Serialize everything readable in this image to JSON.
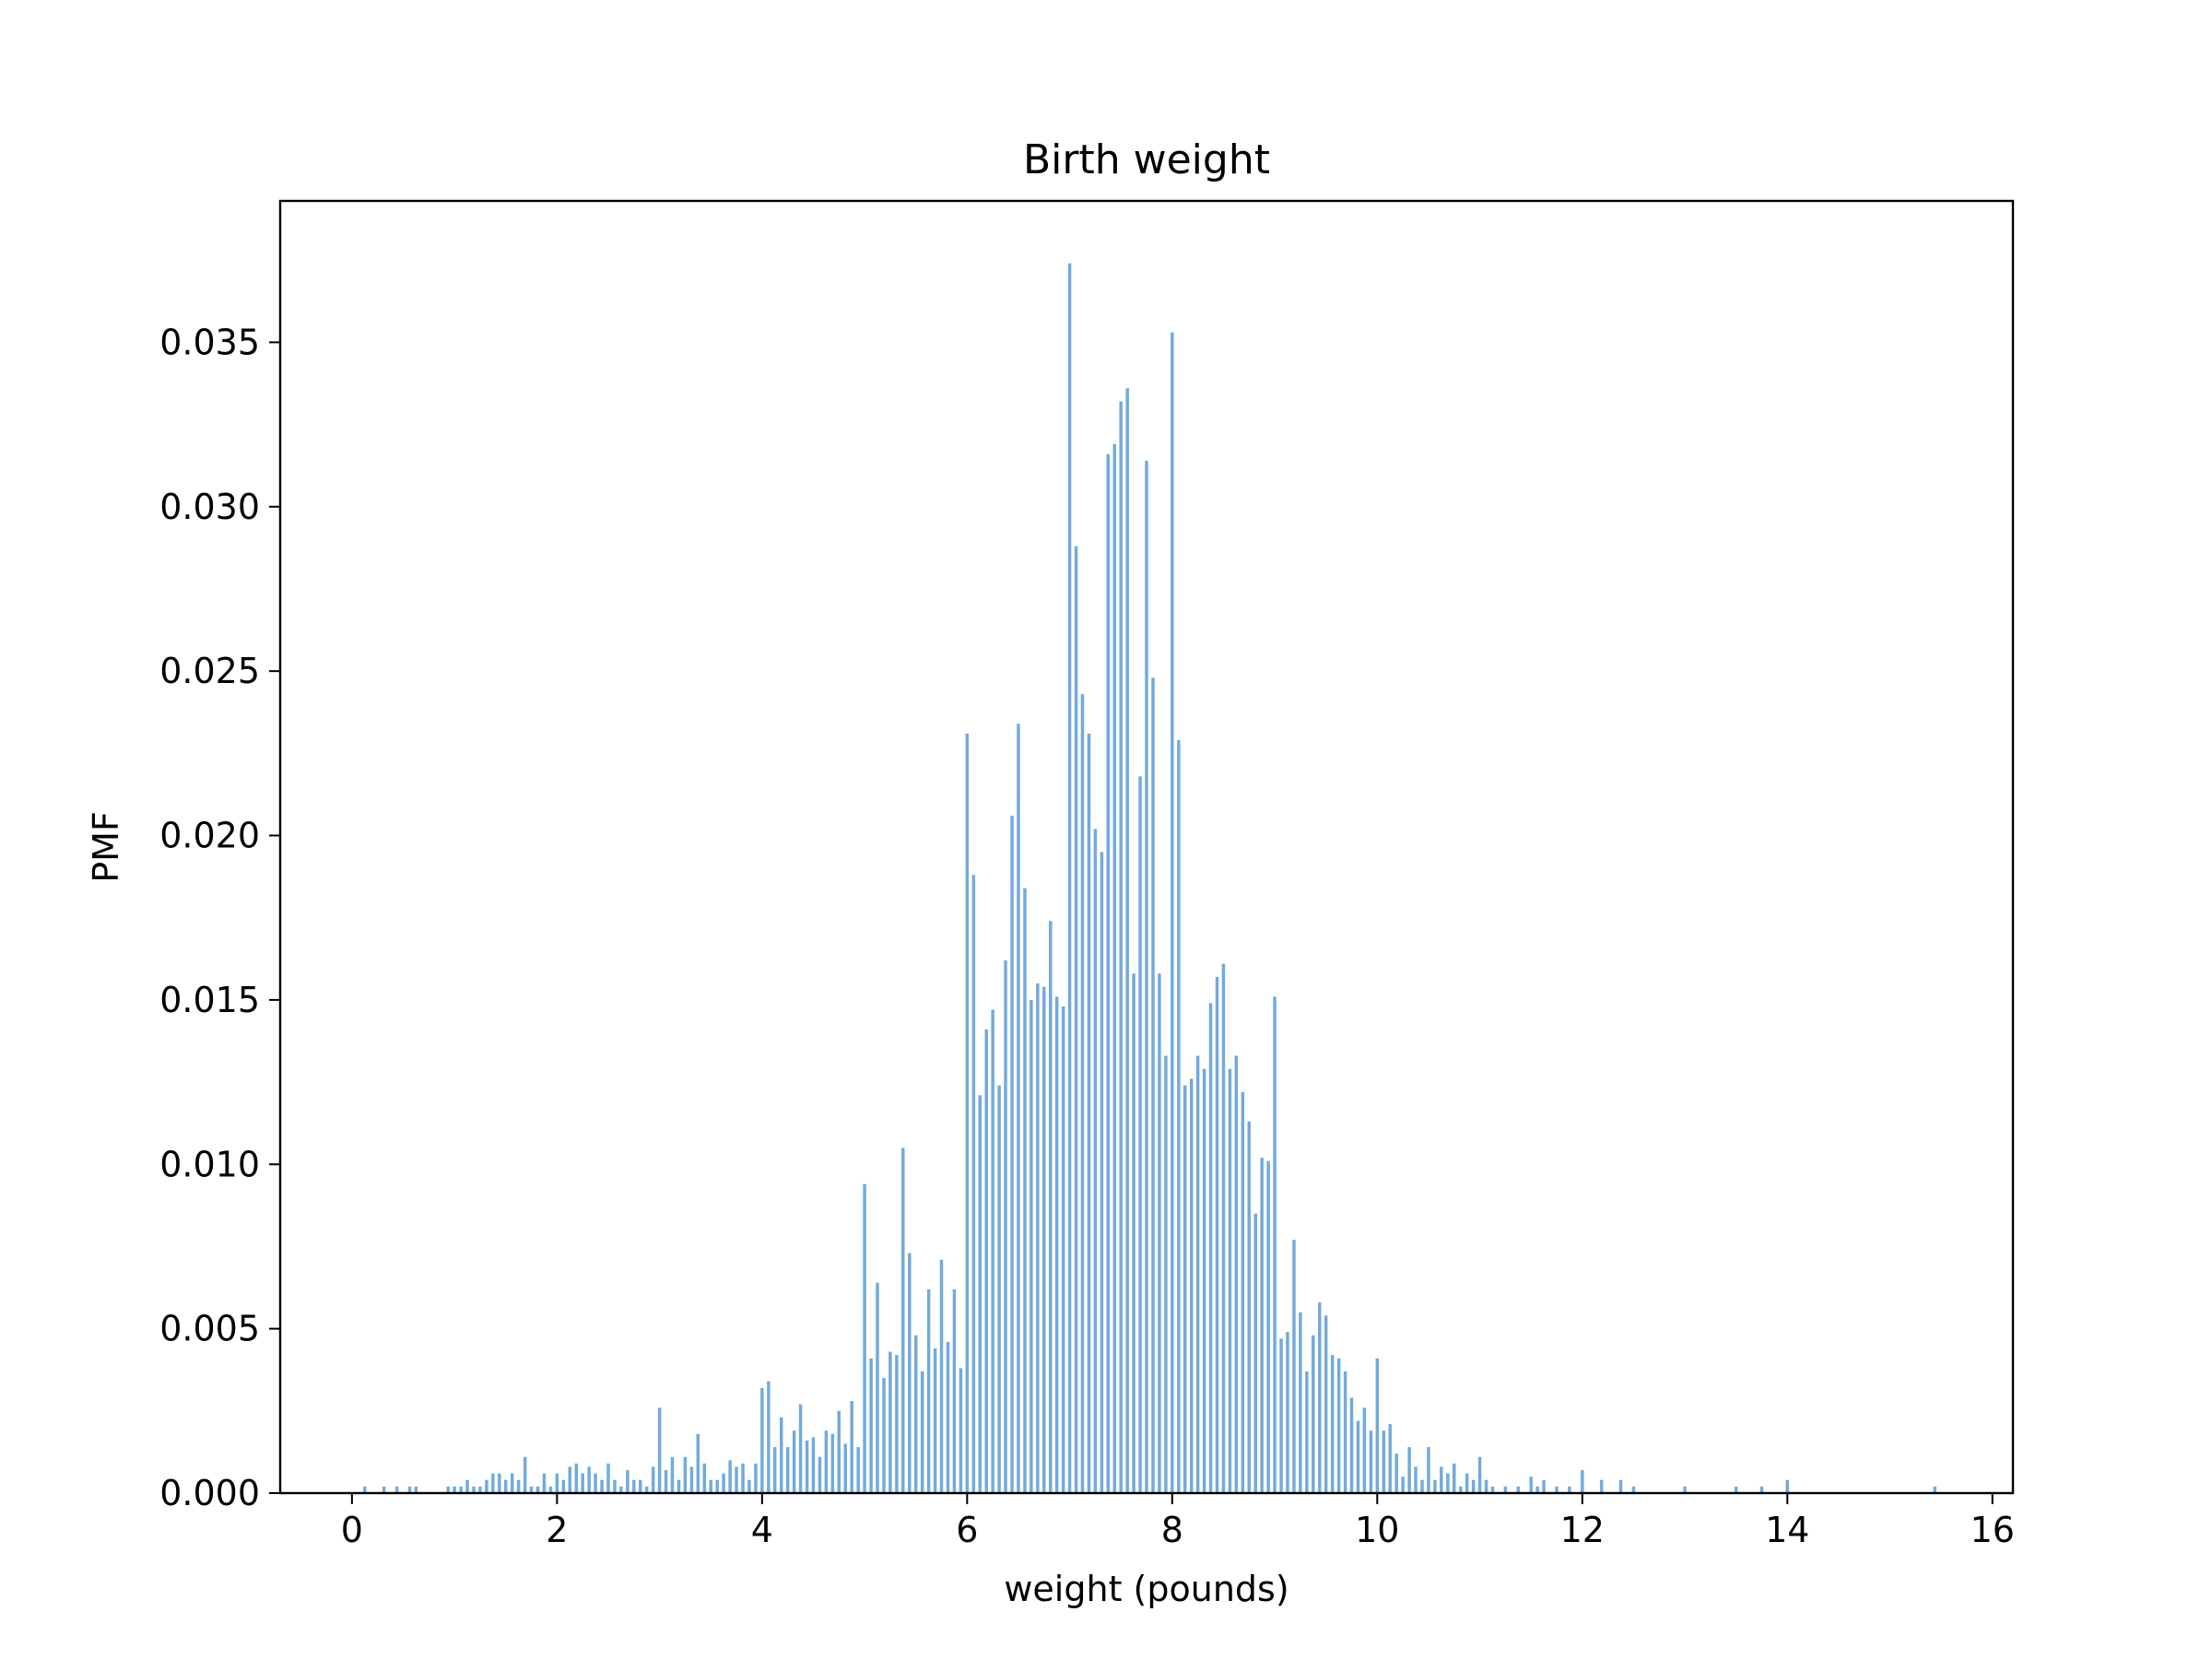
{
  "chart_data": {
    "type": "bar",
    "title": "Birth weight",
    "xlabel": "weight (pounds)",
    "ylabel": "PMF",
    "xlim": [
      -0.7,
      16.2
    ],
    "ylim": [
      0,
      0.0393
    ],
    "grid": false,
    "legend": "none",
    "bar_color": "#5b9bd5",
    "bar_width": 0.0313,
    "xticks": [
      {
        "value": 0,
        "label": "0"
      },
      {
        "value": 2,
        "label": "2"
      },
      {
        "value": 4,
        "label": "4"
      },
      {
        "value": 6,
        "label": "6"
      },
      {
        "value": 8,
        "label": "8"
      },
      {
        "value": 10,
        "label": "10"
      },
      {
        "value": 12,
        "label": "12"
      },
      {
        "value": 14,
        "label": "14"
      },
      {
        "value": 16,
        "label": "16"
      }
    ],
    "yticks": [
      {
        "value": 0,
        "label": "0.000"
      },
      {
        "value": 0.005,
        "label": "0.005"
      },
      {
        "value": 0.01,
        "label": "0.010"
      },
      {
        "value": 0.015,
        "label": "0.015"
      },
      {
        "value": 0.02,
        "label": "0.020"
      },
      {
        "value": 0.025,
        "label": "0.025"
      },
      {
        "value": 0.03,
        "label": "0.030"
      },
      {
        "value": 0.035,
        "label": "0.035"
      }
    ],
    "x": [
      0.125,
      0.313,
      0.438,
      0.563,
      0.625,
      0.938,
      1.0,
      1.063,
      1.125,
      1.188,
      1.25,
      1.313,
      1.375,
      1.438,
      1.5,
      1.563,
      1.625,
      1.688,
      1.75,
      1.813,
      1.875,
      1.938,
      2.0,
      2.063,
      2.125,
      2.188,
      2.25,
      2.313,
      2.375,
      2.438,
      2.5,
      2.563,
      2.625,
      2.688,
      2.75,
      2.813,
      2.875,
      2.938,
      3.0,
      3.063,
      3.125,
      3.188,
      3.25,
      3.313,
      3.375,
      3.438,
      3.5,
      3.563,
      3.625,
      3.688,
      3.75,
      3.813,
      3.875,
      3.938,
      4.0,
      4.063,
      4.125,
      4.188,
      4.25,
      4.313,
      4.375,
      4.438,
      4.5,
      4.563,
      4.625,
      4.688,
      4.75,
      4.813,
      4.875,
      4.938,
      5.0,
      5.063,
      5.125,
      5.188,
      5.25,
      5.313,
      5.375,
      5.438,
      5.5,
      5.563,
      5.625,
      5.688,
      5.75,
      5.813,
      5.875,
      5.938,
      6.0,
      6.063,
      6.125,
      6.188,
      6.25,
      6.313,
      6.375,
      6.438,
      6.5,
      6.563,
      6.625,
      6.688,
      6.75,
      6.813,
      6.875,
      6.938,
      7.0,
      7.063,
      7.125,
      7.188,
      7.25,
      7.313,
      7.375,
      7.438,
      7.5,
      7.563,
      7.625,
      7.688,
      7.75,
      7.813,
      7.875,
      7.938,
      8.0,
      8.063,
      8.125,
      8.188,
      8.25,
      8.313,
      8.375,
      8.438,
      8.5,
      8.563,
      8.625,
      8.688,
      8.75,
      8.813,
      8.875,
      8.938,
      9.0,
      9.063,
      9.125,
      9.188,
      9.25,
      9.313,
      9.375,
      9.438,
      9.5,
      9.563,
      9.625,
      9.688,
      9.75,
      9.813,
      9.875,
      9.938,
      10.0,
      10.063,
      10.125,
      10.188,
      10.25,
      10.313,
      10.375,
      10.438,
      10.5,
      10.563,
      10.625,
      10.688,
      10.75,
      10.813,
      10.875,
      10.938,
      11.0,
      11.063,
      11.125,
      11.25,
      11.375,
      11.5,
      11.563,
      11.625,
      11.75,
      11.875,
      12.0,
      12.188,
      12.375,
      12.5,
      13.0,
      13.5,
      13.75,
      14.0,
      15.438
    ],
    "values": [
      0.0002,
      0.0002,
      0.0002,
      0.0002,
      0.0002,
      0.0002,
      0.0002,
      0.0002,
      0.0004,
      0.0002,
      0.0002,
      0.0004,
      0.0006,
      0.0006,
      0.0004,
      0.0006,
      0.0004,
      0.0011,
      0.0002,
      0.0002,
      0.0006,
      0.0002,
      0.0006,
      0.0004,
      0.0008,
      0.0009,
      0.0006,
      0.0008,
      0.0006,
      0.0004,
      0.0009,
      0.0004,
      0.0002,
      0.0007,
      0.0004,
      0.0004,
      0.0002,
      0.0008,
      0.0026,
      0.0007,
      0.0011,
      0.0004,
      0.0011,
      0.0008,
      0.0018,
      0.0009,
      0.0004,
      0.0004,
      0.0006,
      0.001,
      0.0008,
      0.0009,
      0.0004,
      0.0009,
      0.0032,
      0.0034,
      0.0014,
      0.0023,
      0.0014,
      0.0019,
      0.0027,
      0.0016,
      0.0017,
      0.0011,
      0.0019,
      0.0018,
      0.0025,
      0.0015,
      0.0028,
      0.0014,
      0.0094,
      0.0041,
      0.0064,
      0.0035,
      0.0043,
      0.0042,
      0.0105,
      0.0073,
      0.0048,
      0.0037,
      0.0062,
      0.0044,
      0.0071,
      0.0046,
      0.0062,
      0.0038,
      0.0231,
      0.0188,
      0.0121,
      0.0141,
      0.0147,
      0.0124,
      0.0162,
      0.0206,
      0.0234,
      0.0184,
      0.015,
      0.0155,
      0.0154,
      0.0174,
      0.0151,
      0.0148,
      0.0374,
      0.0288,
      0.0243,
      0.0231,
      0.0202,
      0.0195,
      0.0316,
      0.0319,
      0.0332,
      0.0336,
      0.0158,
      0.0218,
      0.0314,
      0.0248,
      0.0158,
      0.0133,
      0.0353,
      0.0229,
      0.0124,
      0.0126,
      0.0133,
      0.0129,
      0.0149,
      0.0157,
      0.0161,
      0.0129,
      0.0133,
      0.0122,
      0.0113,
      0.0085,
      0.0102,
      0.0101,
      0.0151,
      0.0047,
      0.0049,
      0.0077,
      0.0055,
      0.0037,
      0.0048,
      0.0058,
      0.0054,
      0.0042,
      0.0041,
      0.0037,
      0.0029,
      0.0022,
      0.0026,
      0.0019,
      0.0041,
      0.0019,
      0.0021,
      0.0012,
      0.0005,
      0.0014,
      0.0008,
      0.0004,
      0.0014,
      0.0004,
      0.0008,
      0.0006,
      0.0009,
      0.0002,
      0.0006,
      0.0004,
      0.0011,
      0.0004,
      0.0002,
      0.0002,
      0.0002,
      0.0005,
      0.0002,
      0.0004,
      0.0002,
      0.0002,
      0.0007,
      0.0004,
      0.0004,
      0.0002,
      0.0002,
      0.0002,
      0.0002,
      0.0004,
      0.0002
    ]
  }
}
